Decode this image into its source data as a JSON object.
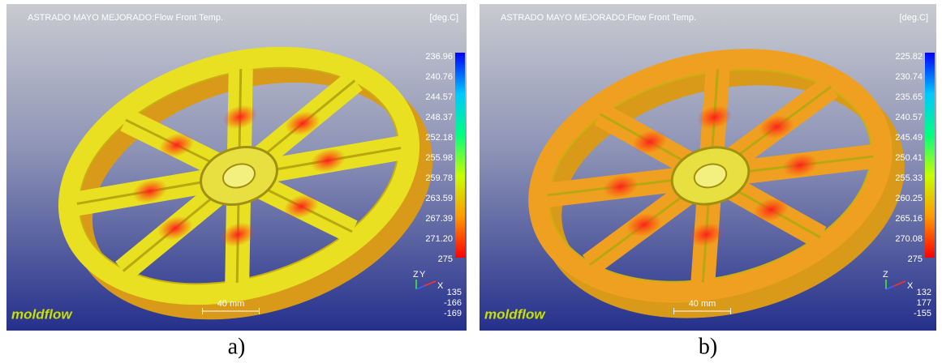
{
  "panels": [
    {
      "title": "ASTRADO MAYO MEJORADO:Flow Front Temp.",
      "unit": "[deg.C]",
      "legend": [
        "236.96",
        "240.76",
        "244.57",
        "248.37",
        "252.18",
        "255.98",
        "259.78",
        "263.59",
        "267.39",
        "271.20",
        "275"
      ],
      "axes": [
        "Z",
        "Y",
        "X"
      ],
      "coords": [
        "135",
        "-166",
        "-169"
      ],
      "scale": "40 mm",
      "logo": "moldflow",
      "caption": "a)"
    },
    {
      "title": "ASTRADO MAYO MEJORADO:Flow Front Temp.",
      "unit": "[deg.C]",
      "legend": [
        "225.82",
        "230.74",
        "235.65",
        "240.57",
        "245.49",
        "250.41",
        "255.33",
        "260.25",
        "265.16",
        "270.08",
        "275"
      ],
      "axes": [
        "Z",
        "X"
      ],
      "coords": [
        "132",
        "177",
        "-155"
      ],
      "scale": "40 mm",
      "logo": "moldflow",
      "caption": "b)"
    }
  ]
}
